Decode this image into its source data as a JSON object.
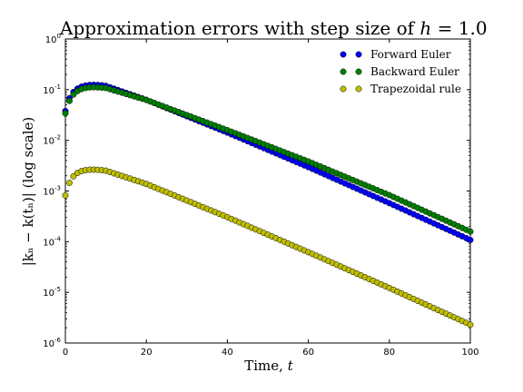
{
  "chart_data": {
    "type": "scatter",
    "title": "Approximation errors with step size of",
    "title_math_lhs": "h",
    "title_math_eq": "=",
    "title_math_rhs": "1.0",
    "xlabel_text": "Time,",
    "xlabel_var": "t",
    "ylabel": "|kₙ − k(tₙ)| (log scale)",
    "xlim": [
      0,
      100
    ],
    "ylim": [
      1e-06,
      1
    ],
    "yscale": "log",
    "x_ticks": [
      0,
      20,
      40,
      60,
      80,
      100
    ],
    "y_tick_mantissa": "10",
    "y_tick_exponents": [
      "-6",
      "-5",
      "-4",
      "-3",
      "-2",
      "-1",
      "0"
    ],
    "legend_position": "top-right",
    "grid": false,
    "series": [
      {
        "name": "Forward Euler",
        "color": "#0000ff",
        "x": [
          0,
          100
        ],
        "peak": [
          7,
          0.125
        ],
        "points": [
          [
            0,
            0.038
          ],
          [
            1,
            0.068
          ],
          [
            2,
            0.09
          ],
          [
            3,
            0.105
          ],
          [
            4,
            0.115
          ],
          [
            5,
            0.121
          ],
          [
            6,
            0.124
          ],
          [
            7,
            0.125
          ],
          [
            8,
            0.124
          ],
          [
            9,
            0.122
          ],
          [
            10,
            0.119
          ],
          [
            20,
            0.063
          ],
          [
            40,
            0.0142
          ],
          [
            60,
            0.00296
          ],
          [
            80,
            0.000576
          ],
          [
            100,
            0.000108
          ]
        ]
      },
      {
        "name": "Backward Euler",
        "color": "#008000",
        "points": [
          [
            0,
            0.034
          ],
          [
            1,
            0.06
          ],
          [
            2,
            0.08
          ],
          [
            3,
            0.094
          ],
          [
            4,
            0.103
          ],
          [
            5,
            0.108
          ],
          [
            6,
            0.111
          ],
          [
            7,
            0.112
          ],
          [
            8,
            0.111
          ],
          [
            9,
            0.11
          ],
          [
            10,
            0.108
          ],
          [
            20,
            0.0625
          ],
          [
            40,
            0.0159
          ],
          [
            60,
            0.00383
          ],
          [
            80,
            0.00083
          ],
          [
            100,
            0.000158
          ]
        ]
      },
      {
        "name": "Trapezoidal rule",
        "color": "#bfbf00",
        "points": [
          [
            0,
            0.00082
          ],
          [
            1,
            0.00145
          ],
          [
            2,
            0.00195
          ],
          [
            3,
            0.00228
          ],
          [
            4,
            0.00248
          ],
          [
            5,
            0.00258
          ],
          [
            6,
            0.00263
          ],
          [
            7,
            0.00264
          ],
          [
            8,
            0.00262
          ],
          [
            9,
            0.00258
          ],
          [
            10,
            0.00252
          ],
          [
            20,
            0.00138
          ],
          [
            40,
            0.000305
          ],
          [
            60,
            6.2e-05
          ],
          [
            80,
            1.22e-05
          ],
          [
            100,
            2.3e-06
          ]
        ]
      }
    ]
  }
}
